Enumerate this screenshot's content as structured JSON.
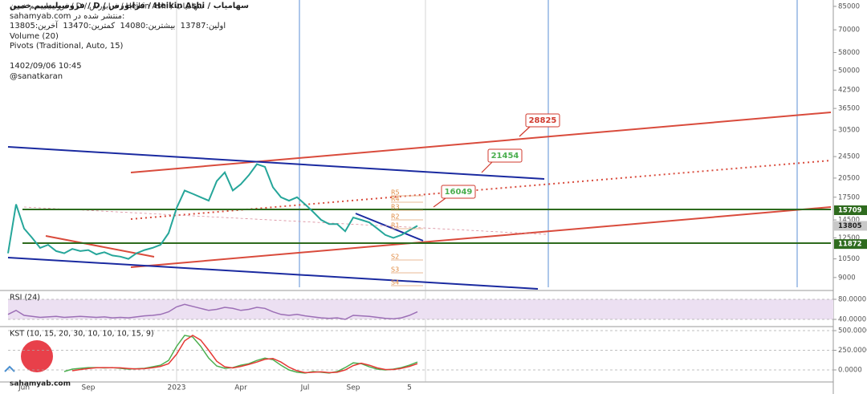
{
  "chart_data": [
    {
      "type": "line",
      "title": "فروسیلیسیم خمین / D / فرابورس / Heikin Ashi / سهامیاب",
      "info": [
        "sahamyab.com منتشر شده در:",
        "اولین:13787  بیشترین:14080  کمترین:13470  آخرین:13805",
        "Volume (20)",
        "Pivots (Traditional, Auto, 15)",
        "",
        "1402/09/06 10:45",
        "@sanatkaran"
      ],
      "log": true,
      "categories": [
        null,
        null,
        "Jun",
        null,
        null,
        null,
        null,
        null,
        null,
        null,
        "Sep",
        null,
        null,
        null,
        null,
        null,
        null,
        null,
        null,
        null,
        null,
        "2023",
        null,
        null,
        null,
        null,
        null,
        null,
        null,
        "Apr",
        null,
        null,
        null,
        null,
        null,
        null,
        null,
        "Jul",
        null,
        null,
        null,
        null,
        null,
        "Sep",
        null,
        null,
        null,
        null,
        null,
        null,
        "5",
        null
      ],
      "series": [
        {
          "color": "#26a69a",
          "values": [
            11000,
            16500,
            13500,
            12500,
            11500,
            11800,
            11200,
            11000,
            11400,
            11200,
            11300,
            10900,
            11100,
            10800,
            10700,
            10500,
            11000,
            11300,
            11500,
            11800,
            13000,
            16000,
            18500,
            18000,
            17500,
            17000,
            20000,
            21500,
            18500,
            19500,
            21000,
            23000,
            22500,
            19000,
            17500,
            17000,
            17500,
            16500,
            15500,
            14500,
            14000,
            14000,
            13200,
            14800,
            14500,
            14200,
            13500,
            12800,
            12500,
            12800,
            13300,
            13805
          ]
        }
      ],
      "ylim": [
        8300,
        89600
      ],
      "yticks": [
        85000,
        70000,
        58000,
        50000,
        42500,
        36500,
        30500,
        24500,
        20500,
        17500,
        14500,
        12500,
        10500,
        9000
      ],
      "price_labels": [
        {
          "value": 15709,
          "color": "#2e6b1e"
        },
        {
          "value": 13805,
          "color": "#c8c8c8"
        },
        {
          "value": 11872,
          "color": "#2e6b1e"
        }
      ],
      "annotations": [
        {
          "value": 28825,
          "color": "#d03a2e"
        },
        {
          "value": 21454,
          "color": "#4caf50"
        },
        {
          "value": 16049,
          "color": "#4caf50"
        }
      ],
      "pivots": [
        "R5",
        "R4",
        "R3",
        "R2",
        "R1",
        "S2",
        "S3",
        "S4"
      ]
    },
    {
      "type": "line",
      "title": "RSI (24)",
      "series": [
        {
          "color": "#9c6fb6",
          "values": [
            50,
            58,
            48,
            46,
            44,
            45,
            46,
            44,
            45,
            46,
            45,
            44,
            45,
            43,
            44,
            43,
            45,
            47,
            48,
            50,
            55,
            65,
            70,
            66,
            62,
            58,
            60,
            64,
            62,
            58,
            60,
            64,
            62,
            55,
            50,
            48,
            50,
            47,
            45,
            43,
            42,
            43,
            40,
            48,
            47,
            46,
            44,
            42,
            41,
            43,
            48,
            55
          ]
        }
      ],
      "ylim": [
        25.6,
        96
      ],
      "yticks": [
        {
          "value": 80,
          "label": "80.0000"
        },
        {
          "value": 40,
          "label": "40.0000"
        }
      ]
    },
    {
      "type": "line",
      "title": "KST (10, 15, 20, 30, 10, 10, 10, 15, 9)",
      "series": [
        {
          "color": "#4caf50",
          "values": [
            null,
            null,
            null,
            null,
            null,
            null,
            null,
            -20,
            10,
            20,
            30,
            30,
            25,
            30,
            20,
            10,
            15,
            20,
            40,
            60,
            120,
            300,
            440,
            420,
            300,
            150,
            50,
            20,
            30,
            60,
            80,
            120,
            150,
            130,
            60,
            0,
            -30,
            -40,
            -20,
            -30,
            -40,
            -20,
            30,
            90,
            80,
            40,
            10,
            0,
            10,
            30,
            60,
            100
          ]
        },
        {
          "color": "#e53935",
          "values": [
            null,
            null,
            null,
            null,
            null,
            null,
            null,
            null,
            -10,
            5,
            18,
            28,
            30,
            27,
            26,
            18,
            12,
            16,
            28,
            45,
            80,
            200,
            370,
            440,
            380,
            250,
            110,
            40,
            25,
            45,
            70,
            100,
            135,
            145,
            100,
            35,
            -10,
            -35,
            -30,
            -25,
            -35,
            -30,
            0,
            55,
            85,
            60,
            25,
            5,
            5,
            20,
            45,
            80
          ]
        }
      ],
      "ylim": [
        -143,
        541
      ],
      "yticks": [
        {
          "value": 500,
          "label": "500.0000"
        },
        {
          "value": 250,
          "label": "250.0000"
        },
        {
          "value": 0,
          "label": "0.0000"
        }
      ]
    }
  ],
  "footer": "sahamyab.com"
}
